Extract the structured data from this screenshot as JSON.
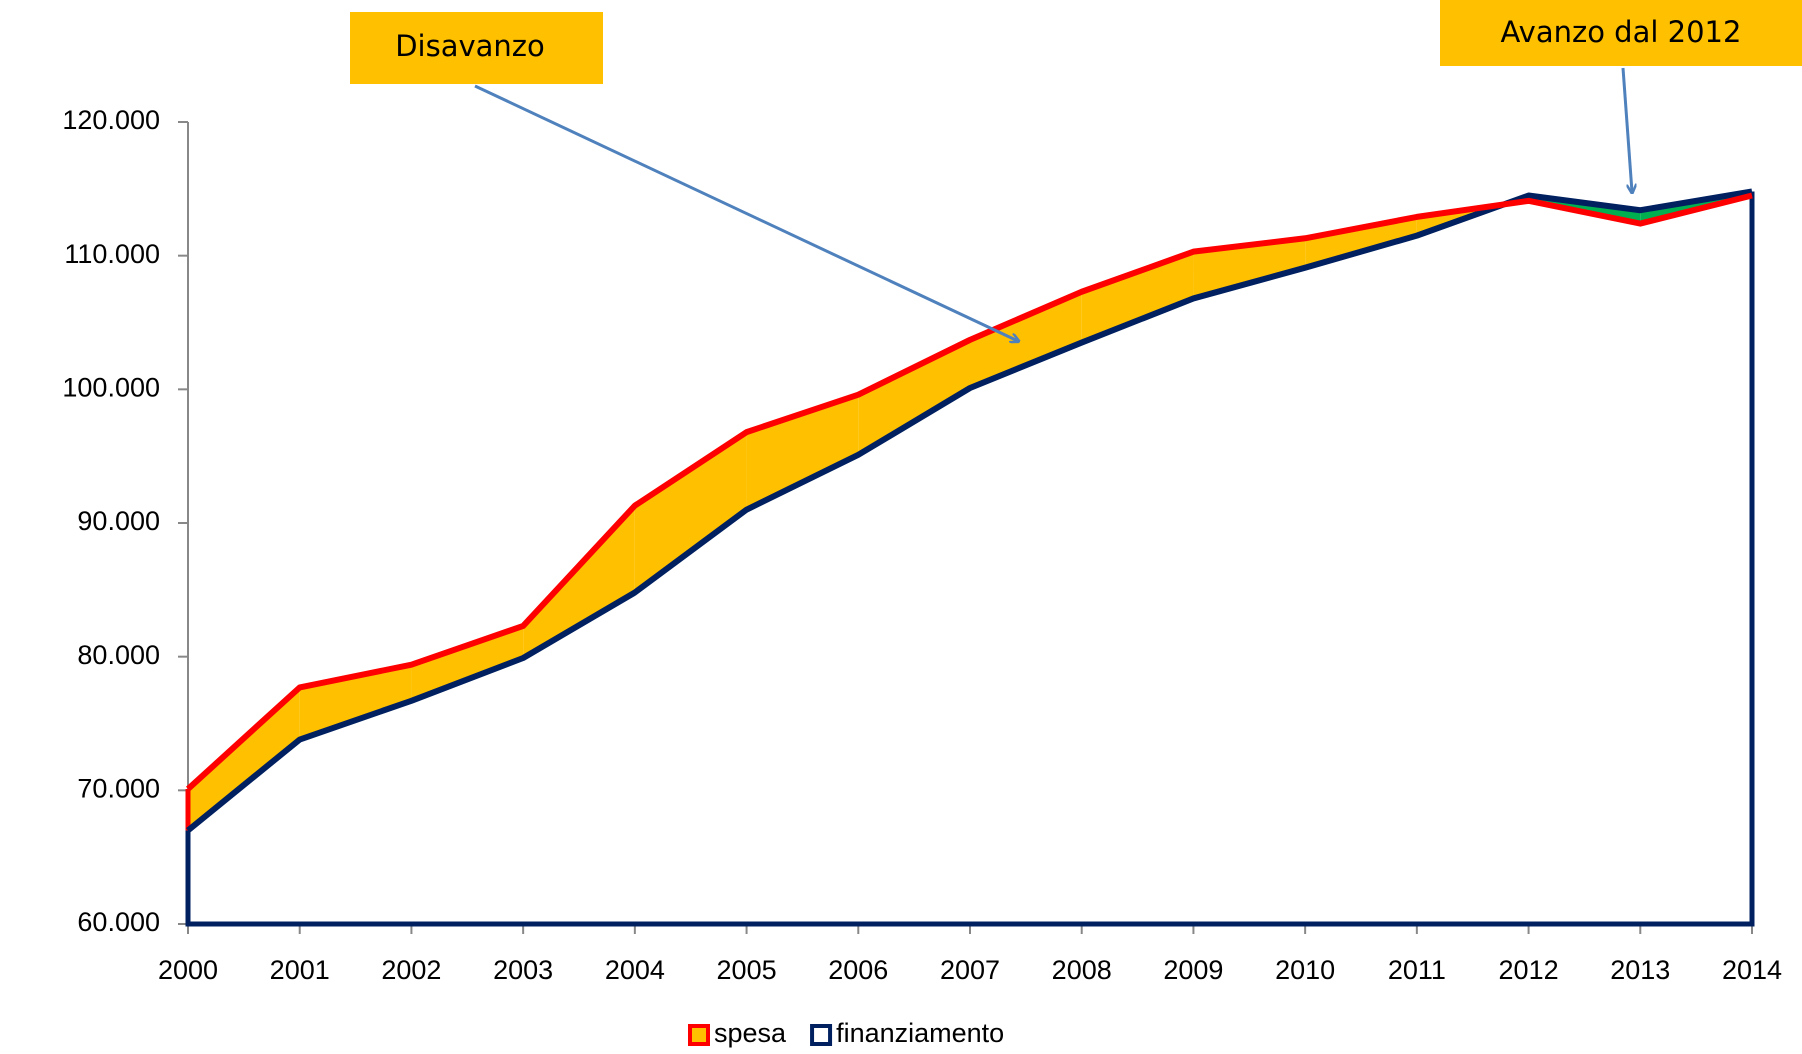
{
  "chart_data": {
    "type": "line",
    "x": [
      2000,
      2001,
      2002,
      2003,
      2004,
      2005,
      2006,
      2007,
      2008,
      2009,
      2010,
      2011,
      2012,
      2013,
      2014
    ],
    "series": [
      {
        "name": "spesa",
        "color": "#ff0000",
        "fill": "#ffc000",
        "values": [
          70100,
          77700,
          79400,
          82300,
          91300,
          96800,
          99600,
          103700,
          107300,
          110300,
          111300,
          112900,
          114100,
          112400,
          114500
        ]
      },
      {
        "name": "finanziamento",
        "color": "#002060",
        "fill": "#ffffff",
        "values": [
          67000,
          73800,
          76700,
          79900,
          84800,
          91000,
          95100,
          100100,
          103500,
          106800,
          109100,
          111500,
          114500,
          113400,
          114800
        ]
      }
    ],
    "deficit_color": "#ffc000",
    "surplus_color": "#00b050",
    "xlim": [
      2000,
      2014
    ],
    "xticks": [
      2000,
      2001,
      2002,
      2003,
      2004,
      2005,
      2006,
      2007,
      2008,
      2009,
      2010,
      2011,
      2012,
      2013,
      2014
    ],
    "ylim": [
      60000,
      120000
    ],
    "yticks": [
      {
        "value": 60000,
        "label": "60.000"
      },
      {
        "value": 70000,
        "label": "70.000"
      },
      {
        "value": 80000,
        "label": "80.000"
      },
      {
        "value": 90000,
        "label": "90.000"
      },
      {
        "value": 100000,
        "label": "100.000"
      },
      {
        "value": 110000,
        "label": "110.000"
      },
      {
        "value": 120000,
        "label": "120.000"
      }
    ],
    "legend": "bottom",
    "annotations": [
      "Disavanzo",
      "Avanzo dal 2012"
    ]
  }
}
